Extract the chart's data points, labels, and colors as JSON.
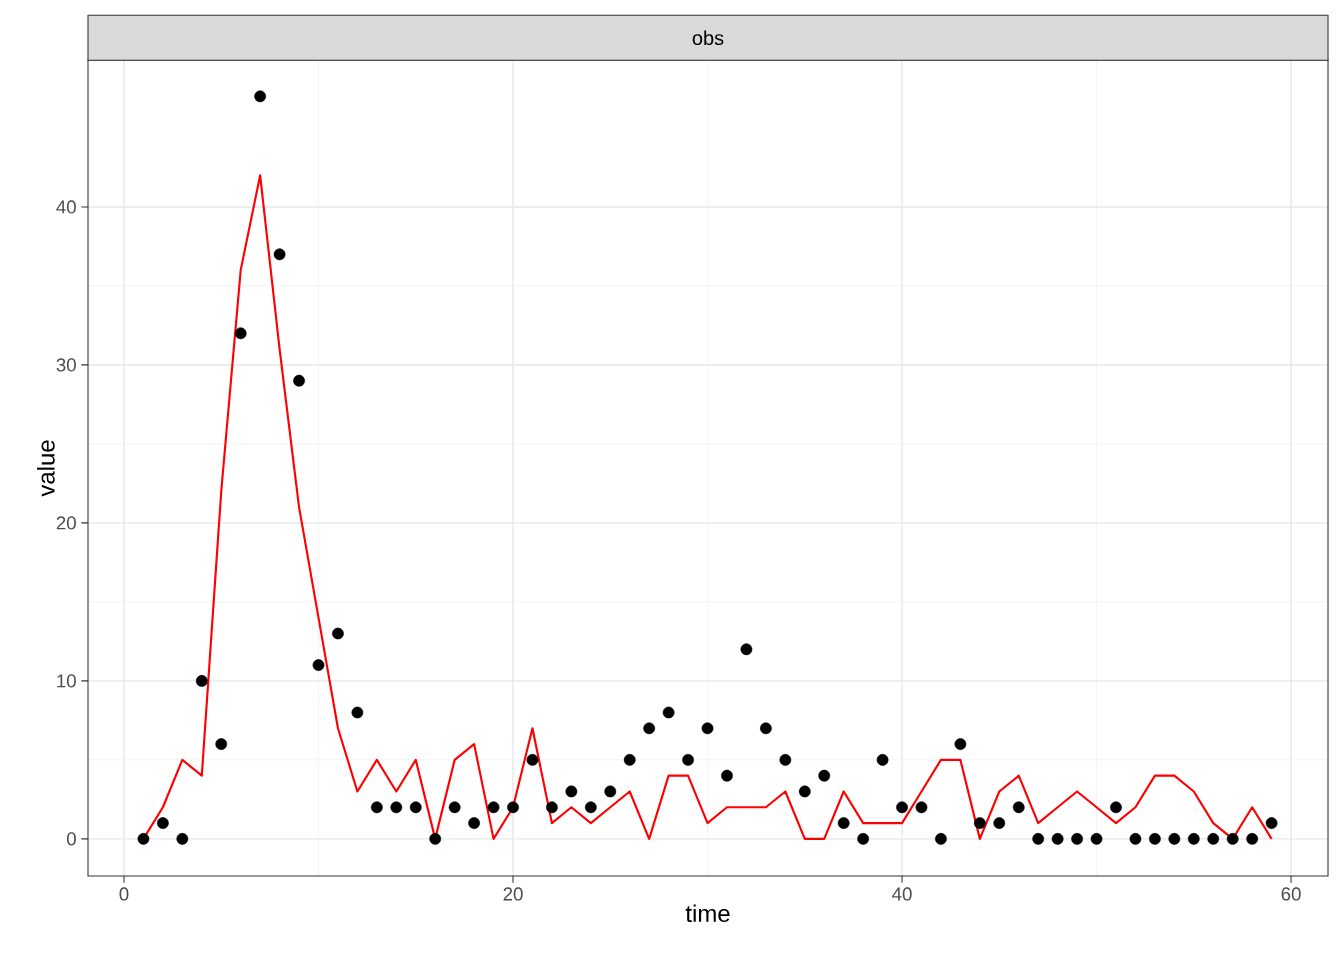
{
  "chart_data": {
    "type": "scatter",
    "title": "obs",
    "xlabel": "time",
    "ylabel": "value",
    "x": [
      1,
      2,
      3,
      4,
      5,
      6,
      7,
      8,
      9,
      10,
      11,
      12,
      13,
      14,
      15,
      16,
      17,
      18,
      19,
      20,
      21,
      22,
      23,
      24,
      25,
      26,
      27,
      28,
      29,
      30,
      31,
      32,
      33,
      34,
      35,
      36,
      37,
      38,
      39,
      40,
      41,
      42,
      43,
      44,
      45,
      46,
      47,
      48,
      49,
      50,
      51,
      52,
      53,
      54,
      55,
      56,
      57,
      58,
      59
    ],
    "series": [
      {
        "color": "#000000",
        "marker": "circle",
        "values": [
          0,
          1,
          0,
          10,
          6,
          32,
          47,
          37,
          29,
          11,
          13,
          8,
          2,
          2,
          2,
          0,
          2,
          1,
          2,
          2,
          5,
          2,
          3,
          2,
          3,
          5,
          7,
          8,
          5,
          7,
          4,
          12,
          7,
          5,
          3,
          4,
          1,
          0,
          5,
          2,
          2,
          0,
          6,
          1,
          1,
          2,
          0,
          0,
          0,
          0,
          2,
          0,
          0,
          0,
          0,
          0,
          0,
          0,
          1
        ]
      },
      {
        "type": "line",
        "color": "#ff0000",
        "marker": "none",
        "line_style": "solid",
        "values": [
          0,
          2,
          5,
          4,
          22,
          36,
          42,
          31,
          21,
          14,
          7,
          3,
          5,
          3,
          5,
          0,
          5,
          6,
          0,
          2,
          7,
          1,
          2,
          1,
          2,
          3,
          0,
          4,
          4,
          1,
          2,
          2,
          2,
          3,
          0,
          0,
          3,
          1,
          1,
          1,
          3,
          5,
          5,
          0,
          3,
          4,
          1,
          2,
          3,
          2,
          1,
          2,
          4,
          4,
          3,
          1,
          0,
          2,
          0
        ]
      }
    ],
    "xlim": [
      -1.85,
      61.9
    ],
    "ylim": [
      -2.35,
      49.3
    ],
    "xticks": [
      0,
      20,
      40,
      60
    ],
    "yticks": [
      0,
      10,
      20,
      30,
      40
    ],
    "grid": true
  }
}
